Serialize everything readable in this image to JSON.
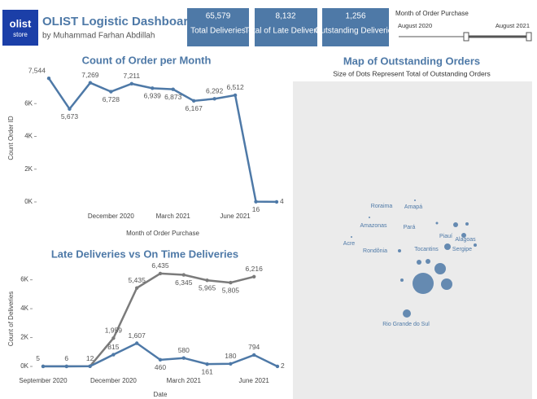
{
  "header": {
    "logo_line1": "olist",
    "logo_line2": "store",
    "title": "OLIST Logistic Dashboard",
    "subtitle": "by Muhammad Farhan Abdillah"
  },
  "kpis": [
    {
      "value": "65,579",
      "label": "Total Deliveries"
    },
    {
      "value": "8,132",
      "label": "Total of Late Deliveries"
    },
    {
      "value": "1,256",
      "label": "Outstanding Deliveries"
    }
  ],
  "filter": {
    "title": "Month of Order Purchase",
    "start": "August 2020",
    "end": "August 2021"
  },
  "chart_data": [
    {
      "type": "line",
      "title": "Count of Order per Month",
      "x_label": "Month of Order Purchase",
      "y_label": "Count Order ID",
      "categories": [
        null,
        null,
        null,
        "December 2020",
        null,
        null,
        "March 2021",
        null,
        null,
        "June 2021",
        null,
        null
      ],
      "values": [
        7544,
        5673,
        7269,
        6728,
        7211,
        6939,
        6873,
        6167,
        6292,
        6512,
        16,
        4
      ],
      "value_labels": [
        "7,544",
        "5,673",
        "7,269",
        "6,728",
        "7,211",
        "6,939",
        "6,873",
        "6,167",
        "6,292",
        "6,512",
        "16",
        "4"
      ],
      "color": "#4e79a7",
      "ylim": [
        0,
        7800
      ],
      "yticks": [
        {
          "value": 0,
          "label": "0K"
        },
        {
          "value": 2000,
          "label": "2K"
        },
        {
          "value": 4000,
          "label": "4K"
        },
        {
          "value": 6000,
          "label": "6K"
        }
      ]
    },
    {
      "type": "line",
      "title": "Late Deliveries vs On Time Deliveries",
      "x_label": "Date",
      "y_label": "Count of Deliveries",
      "categories": [
        "September 2020",
        null,
        null,
        "December 2020",
        null,
        null,
        "March 2021",
        null,
        null,
        "June 2021",
        null
      ],
      "series": [
        {
          "color": "#7b7b7b",
          "values": [
            5,
            6,
            12,
            1959,
            5435,
            6435,
            6345,
            5965,
            5805,
            6216,
            null
          ],
          "value_labels": [
            "5",
            "6",
            "12",
            "1,959",
            "5,435",
            "6,435",
            "6,345",
            "5,965",
            "5,805",
            "6,216",
            null
          ]
        },
        {
          "color": "#4e79a7",
          "values": [
            5,
            6,
            12,
            815,
            1607,
            460,
            580,
            161,
            180,
            794,
            2
          ],
          "value_labels": [
            null,
            null,
            null,
            "815",
            "1,607",
            "460",
            "580",
            "161",
            "180",
            "794",
            "2"
          ]
        }
      ],
      "ylim": [
        0,
        6600
      ],
      "yticks": [
        {
          "value": 0,
          "label": "0K"
        },
        {
          "value": 2000,
          "label": "2K"
        },
        {
          "value": 4000,
          "label": "4K"
        },
        {
          "value": 6000,
          "label": "6K"
        }
      ]
    }
  ],
  "map": {
    "title": "Map of Outstanding Orders",
    "subtitle": "Size of Dots Represent Total of Outstanding Orders",
    "labels": [
      "Roraima",
      "Amapá",
      "Amazonas",
      "Pará",
      "Piauí",
      "Alagoas",
      "Acre",
      "Tocantins",
      "Sergipe",
      "Rondônia",
      "Rio Grande do Sul"
    ]
  }
}
